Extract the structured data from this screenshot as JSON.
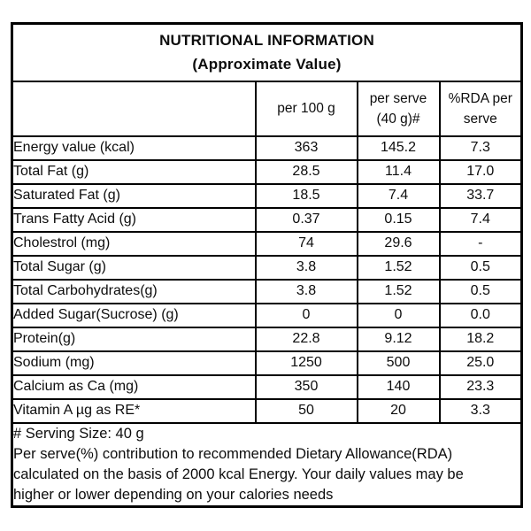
{
  "table": {
    "title": "NUTRITIONAL INFORMATION",
    "subtitle": "(Approximate Value)",
    "col_headers": {
      "item": "",
      "per_100g": "per 100 g",
      "per_serve_line1": "per serve",
      "per_serve_line2": "(40 g)#",
      "rda_line1": "%RDA per",
      "rda_line2": "serve"
    },
    "rows": [
      {
        "label": "Energy value (kcal)",
        "per_100g": "363",
        "per_serve": "145.2",
        "rda": "7.3"
      },
      {
        "label": "Total Fat (g)",
        "per_100g": "28.5",
        "per_serve": "11.4",
        "rda": "17.0"
      },
      {
        "label": "Saturated Fat (g)",
        "per_100g": "18.5",
        "per_serve": "7.4",
        "rda": "33.7"
      },
      {
        "label": "Trans Fatty Acid (g)",
        "per_100g": "0.37",
        "per_serve": "0.15",
        "rda": "7.4"
      },
      {
        "label": "Cholestrol (mg)",
        "per_100g": "74",
        "per_serve": "29.6",
        "rda": "-"
      },
      {
        "label": "Total Sugar (g)",
        "per_100g": "3.8",
        "per_serve": "1.52",
        "rda": "0.5"
      },
      {
        "label": "Total Carbohydrates(g)",
        "per_100g": "3.8",
        "per_serve": "1.52",
        "rda": "0.5"
      },
      {
        "label": "Added Sugar(Sucrose) (g)",
        "per_100g": "0",
        "per_serve": "0",
        "rda": "0.0"
      },
      {
        "label": "Protein(g)",
        "per_100g": "22.8",
        "per_serve": "9.12",
        "rda": "18.2"
      },
      {
        "label": "Sodium (mg)",
        "per_100g": "1250",
        "per_serve": "500",
        "rda": "25.0"
      },
      {
        "label": "Calcium as Ca (mg)",
        "per_100g": "350",
        "per_serve": "140",
        "rda": "23.3"
      },
      {
        "label": "Vitamin A µg as RE*",
        "per_100g": "50",
        "per_serve": "20",
        "rda": "3.3"
      }
    ],
    "footnotes": [
      "# Serving Size: 40 g",
      "Per serve(%) contribution to recommended Dietary Allowance(RDA)",
      "calculated on the basis of 2000 kcal Energy. Your daily values may be",
      "higher or lower depending on your calories needs"
    ]
  }
}
